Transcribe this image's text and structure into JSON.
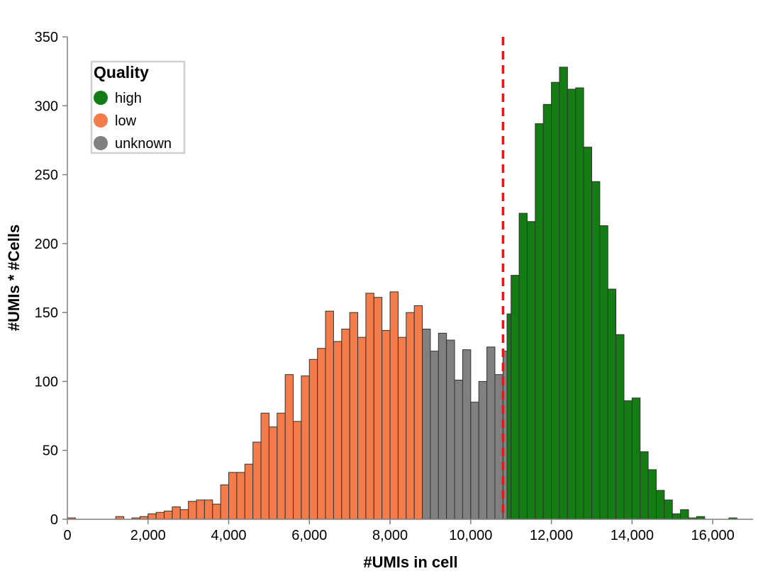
{
  "chart_data": {
    "type": "bar",
    "xlabel": "#UMIs in cell",
    "ylabel": "#UMIs * #Cells",
    "xlim": [
      0,
      17000
    ],
    "ylim": [
      0,
      350
    ],
    "x_ticks": [
      0,
      2000,
      4000,
      6000,
      8000,
      10000,
      12000,
      14000,
      16000
    ],
    "x_tick_labels": [
      "0",
      "2,000",
      "4,000",
      "6,000",
      "8,000",
      "10,000",
      "12,000",
      "14,000",
      "16,000"
    ],
    "y_ticks": [
      0,
      50,
      100,
      150,
      200,
      250,
      300,
      350
    ],
    "y_tick_labels": [
      "0",
      "50",
      "100",
      "150",
      "200",
      "250",
      "300",
      "350"
    ],
    "bin_width": 200,
    "threshold": 10800,
    "threshold_color": "#e31a1c",
    "legend": {
      "title": "Quality",
      "position": "top-left",
      "items": [
        {
          "label": "high",
          "color": "#137c13"
        },
        {
          "label": "low",
          "color": "#f47b4a"
        },
        {
          "label": "unknown",
          "color": "#808080"
        }
      ]
    },
    "series": [
      {
        "name": "low",
        "color": "#f47b4a",
        "bins": [
          [
            0,
            1
          ],
          [
            1200,
            2
          ],
          [
            1600,
            1
          ],
          [
            1800,
            2
          ],
          [
            2000,
            4
          ],
          [
            2200,
            5
          ],
          [
            2400,
            6
          ],
          [
            2600,
            9
          ],
          [
            2800,
            7
          ],
          [
            3000,
            13
          ],
          [
            3200,
            14
          ],
          [
            3400,
            14
          ],
          [
            3600,
            11
          ],
          [
            3800,
            25
          ],
          [
            4000,
            34
          ],
          [
            4200,
            34
          ],
          [
            4400,
            40
          ],
          [
            4600,
            56
          ],
          [
            4800,
            77
          ],
          [
            5000,
            67
          ],
          [
            5200,
            77
          ],
          [
            5400,
            105
          ],
          [
            5600,
            71
          ],
          [
            5800,
            104
          ],
          [
            6000,
            116
          ],
          [
            6200,
            124
          ],
          [
            6400,
            151
          ],
          [
            6600,
            129
          ],
          [
            6800,
            138
          ],
          [
            7000,
            150
          ],
          [
            7200,
            132
          ],
          [
            7400,
            164
          ],
          [
            7600,
            161
          ],
          [
            7800,
            137
          ],
          [
            8000,
            165
          ],
          [
            8200,
            132
          ],
          [
            8400,
            150
          ],
          [
            8600,
            155
          ]
        ]
      },
      {
        "name": "unknown",
        "color": "#808080",
        "bins": [
          [
            8800,
            138
          ],
          [
            9000,
            122
          ],
          [
            9200,
            135
          ],
          [
            9400,
            130
          ],
          [
            9600,
            101
          ],
          [
            9800,
            123
          ],
          [
            10000,
            85
          ],
          [
            10200,
            100
          ],
          [
            10400,
            125
          ],
          [
            10600,
            105
          ],
          [
            10800,
            122
          ]
        ]
      },
      {
        "name": "high",
        "color": "#137c13",
        "bins": [
          [
            10900,
            149
          ],
          [
            11000,
            177
          ],
          [
            11200,
            222
          ],
          [
            11400,
            216
          ],
          [
            11600,
            287
          ],
          [
            11800,
            301
          ],
          [
            12000,
            317
          ],
          [
            12200,
            328
          ],
          [
            12400,
            312
          ],
          [
            12600,
            313
          ],
          [
            12800,
            270
          ],
          [
            13000,
            245
          ],
          [
            13200,
            213
          ],
          [
            13400,
            167
          ],
          [
            13600,
            134
          ],
          [
            13800,
            86
          ],
          [
            14000,
            88
          ],
          [
            14200,
            49
          ],
          [
            14400,
            36
          ],
          [
            14600,
            21
          ],
          [
            14800,
            14
          ],
          [
            15000,
            4
          ],
          [
            15200,
            7
          ],
          [
            15400,
            1
          ],
          [
            15600,
            2
          ],
          [
            16400,
            1
          ]
        ]
      }
    ]
  }
}
